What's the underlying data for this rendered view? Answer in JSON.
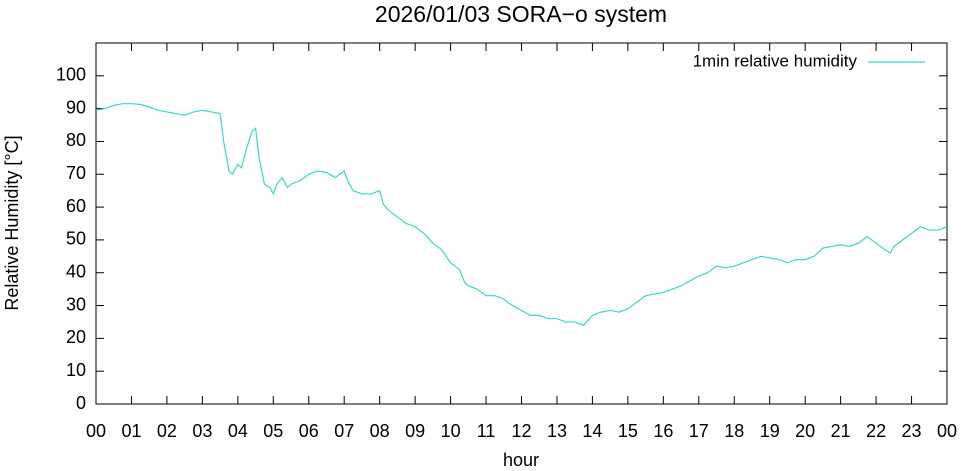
{
  "chart_data": {
    "type": "line",
    "title": "2026/01/03 SORA−o system",
    "x_label": "hour",
    "y_label": "Relative Humidity [°C]",
    "xlim": [
      0,
      24
    ],
    "xticks": [
      {
        "value": 0,
        "label": "00"
      },
      {
        "value": 1,
        "label": "01"
      },
      {
        "value": 2,
        "label": "02"
      },
      {
        "value": 3,
        "label": "03"
      },
      {
        "value": 4,
        "label": "04"
      },
      {
        "value": 5,
        "label": "05"
      },
      {
        "value": 6,
        "label": "06"
      },
      {
        "value": 7,
        "label": "07"
      },
      {
        "value": 8,
        "label": "08"
      },
      {
        "value": 9,
        "label": "09"
      },
      {
        "value": 10,
        "label": "10"
      },
      {
        "value": 11,
        "label": "11"
      },
      {
        "value": 12,
        "label": "12"
      },
      {
        "value": 13,
        "label": "13"
      },
      {
        "value": 14,
        "label": "14"
      },
      {
        "value": 15,
        "label": "15"
      },
      {
        "value": 16,
        "label": "16"
      },
      {
        "value": 17,
        "label": "17"
      },
      {
        "value": 18,
        "label": "18"
      },
      {
        "value": 19,
        "label": "19"
      },
      {
        "value": 20,
        "label": "20"
      },
      {
        "value": 21,
        "label": "21"
      },
      {
        "value": 22,
        "label": "22"
      },
      {
        "value": 23,
        "label": "23"
      },
      {
        "value": 24,
        "label": "00"
      }
    ],
    "ylim": [
      0,
      110
    ],
    "yticks": [
      0,
      10,
      20,
      30,
      40,
      50,
      60,
      70,
      80,
      90,
      100
    ],
    "grid": false,
    "legend": "top-right",
    "x": [
      0,
      0.25,
      0.5,
      0.75,
      1,
      1.25,
      1.5,
      1.75,
      2,
      2.25,
      2.5,
      2.75,
      3,
      3.25,
      3.5,
      3.6,
      3.75,
      3.85,
      4,
      4.1,
      4.25,
      4.4,
      4.5,
      4.6,
      4.75,
      4.9,
      5,
      5.1,
      5.25,
      5.4,
      5.5,
      5.75,
      6,
      6.25,
      6.5,
      6.75,
      7,
      7.1,
      7.25,
      7.5,
      7.75,
      8,
      8.1,
      8.25,
      8.5,
      8.75,
      9,
      9.25,
      9.5,
      9.75,
      10,
      10.25,
      10.4,
      10.5,
      10.75,
      11,
      11.25,
      11.5,
      11.6,
      11.75,
      12,
      12.25,
      12.5,
      12.75,
      13,
      13.25,
      13.5,
      13.75,
      14,
      14.25,
      14.5,
      14.75,
      15,
      15.25,
      15.5,
      15.75,
      16,
      16.25,
      16.5,
      16.75,
      17,
      17.25,
      17.5,
      17.75,
      18,
      18.25,
      18.5,
      18.75,
      19,
      19.25,
      19.5,
      19.75,
      20,
      20.25,
      20.5,
      20.75,
      21,
      21.25,
      21.5,
      21.75,
      22,
      22.25,
      22.4,
      22.5,
      22.75,
      23,
      23.25,
      23.5,
      23.75,
      24
    ],
    "series": [
      {
        "name": "1min relative humidity",
        "color": "#3cd6cc",
        "values": [
          89.5,
          90,
          91,
          91.5,
          91.5,
          91.3,
          90.5,
          89.5,
          89,
          88.5,
          88,
          89,
          89.5,
          89,
          88.5,
          80,
          71,
          70,
          73,
          72,
          78,
          83,
          84,
          75,
          67,
          66,
          64,
          67,
          69,
          66,
          67,
          68,
          70,
          71,
          70.5,
          69,
          71,
          68,
          65,
          64,
          64,
          65,
          61,
          59,
          57,
          55,
          54,
          52,
          49,
          47,
          43,
          41,
          37,
          36,
          35,
          33,
          33,
          32,
          31,
          30,
          28.5,
          27,
          27,
          26,
          26,
          25,
          25,
          24,
          27,
          28,
          28.5,
          28,
          29,
          31,
          33,
          33.5,
          34,
          35,
          36,
          37.5,
          39,
          40,
          42,
          41.5,
          42,
          43,
          44,
          45,
          44.5,
          44,
          43,
          44,
          44,
          45,
          47.5,
          48,
          48.5,
          48,
          49,
          51,
          49,
          47,
          46,
          48,
          50,
          52,
          54,
          53,
          53,
          54
        ]
      }
    ]
  }
}
